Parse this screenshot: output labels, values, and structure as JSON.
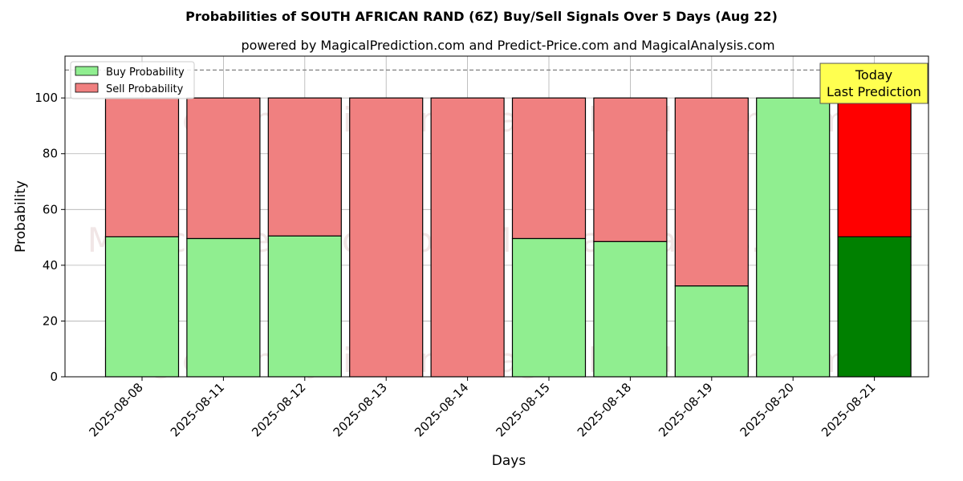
{
  "chart_data": {
    "type": "bar",
    "stacked": true,
    "title": "Probabilities of SOUTH AFRICAN RAND (6Z) Buy/Sell Signals Over 5 Days (Aug 22)",
    "subtitle": "powered by MagicalPrediction.com and Predict-Price.com and MagicalAnalysis.com",
    "xlabel": "Days",
    "ylabel": "Probability",
    "ylim": [
      0,
      115
    ],
    "yticks": [
      0,
      20,
      40,
      60,
      80,
      100
    ],
    "grid": true,
    "reference_line": 110,
    "categories": [
      "2025-08-08",
      "2025-08-11",
      "2025-08-12",
      "2025-08-13",
      "2025-08-14",
      "2025-08-15",
      "2025-08-18",
      "2025-08-19",
      "2025-08-20",
      "2025-08-21"
    ],
    "series": [
      {
        "name": "Buy Probability",
        "color": "#90ee90",
        "highlight_color": "#008000",
        "values": [
          50.2,
          49.6,
          50.5,
          0,
          0,
          49.6,
          48.5,
          32.6,
          100,
          50.2
        ]
      },
      {
        "name": "Sell Probability",
        "color": "#f08080",
        "highlight_color": "#ff0000",
        "values": [
          49.8,
          50.4,
          49.5,
          100,
          100,
          50.4,
          51.5,
          67.4,
          0,
          49.8
        ]
      }
    ],
    "highlight_index": 9,
    "legend_position": "top-left",
    "annotation": {
      "lines": [
        "Today",
        "Last Prediction"
      ],
      "background": "#ffff50"
    },
    "watermarks": [
      "MagicalAnalysis.com",
      "MagicalPrediction.com"
    ]
  }
}
